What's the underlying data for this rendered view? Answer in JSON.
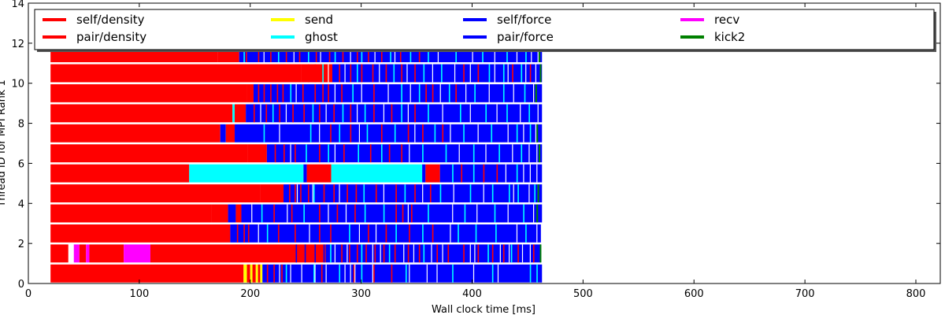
{
  "chart_data": {
    "type": "bar",
    "orientation": "horizontal-timeline",
    "xlabel": "Wall clock time [ms]",
    "ylabel": "Thread ID for MPI Rank 1",
    "xlim": [
      0,
      822
    ],
    "ylim": [
      0,
      14
    ],
    "xticks": [
      0,
      100,
      200,
      300,
      400,
      500,
      600,
      700,
      800
    ],
    "yticks": [
      0,
      2,
      4,
      6,
      8,
      10,
      12,
      14
    ],
    "grid": false,
    "legend_position": "top",
    "legend": [
      {
        "name": "self/density",
        "color": "#ff0000"
      },
      {
        "name": "pair/density",
        "color": "#ff0000"
      },
      {
        "name": "send",
        "color": "#ffff00"
      },
      {
        "name": "ghost",
        "color": "#00ffff"
      },
      {
        "name": "self/force",
        "color": "#0000ff"
      },
      {
        "name": "pair/force",
        "color": "#0000ff"
      },
      {
        "name": "recv",
        "color": "#ff00ff"
      },
      {
        "name": "kick2",
        "color": "#008000"
      }
    ],
    "threads": [
      {
        "thread": 0,
        "segments": [
          {
            "task": "self/density",
            "start": 20,
            "end": 194
          },
          {
            "task": "send",
            "start": 194,
            "end": 197
          },
          {
            "task": "pair/density",
            "start": 197,
            "end": 200
          },
          {
            "task": "send",
            "start": 200,
            "end": 202
          },
          {
            "task": "pair/density",
            "start": 202,
            "end": 205
          },
          {
            "task": "send",
            "start": 205,
            "end": 207
          },
          {
            "task": "pair/density",
            "start": 207,
            "end": 209
          },
          {
            "task": "send",
            "start": 209,
            "end": 211
          },
          {
            "task": "pair/force",
            "start": 211,
            "end": 463
          }
        ]
      },
      {
        "thread": 1,
        "segments": [
          {
            "task": "pair/density",
            "start": 20,
            "end": 36
          },
          {
            "task": "recv",
            "start": 41,
            "end": 46
          },
          {
            "task": "pair/density",
            "start": 46,
            "end": 52
          },
          {
            "task": "recv",
            "start": 52,
            "end": 55
          },
          {
            "task": "pair/density",
            "start": 55,
            "end": 86
          },
          {
            "task": "recv",
            "start": 86,
            "end": 110
          },
          {
            "task": "pair/density",
            "start": 110,
            "end": 268
          },
          {
            "task": "pair/force",
            "start": 268,
            "end": 462
          }
        ]
      },
      {
        "thread": 2,
        "segments": [
          {
            "task": "self/density",
            "start": 20,
            "end": 182
          },
          {
            "task": "pair/force",
            "start": 182,
            "end": 462
          }
        ]
      },
      {
        "thread": 3,
        "segments": [
          {
            "task": "self/density",
            "start": 20,
            "end": 165
          },
          {
            "task": "pair/density",
            "start": 165,
            "end": 180
          },
          {
            "task": "pair/force",
            "start": 180,
            "end": 187
          },
          {
            "task": "pair/density",
            "start": 187,
            "end": 192
          },
          {
            "task": "pair/force",
            "start": 192,
            "end": 463
          }
        ]
      },
      {
        "thread": 4,
        "segments": [
          {
            "task": "self/density",
            "start": 20,
            "end": 209
          },
          {
            "task": "pair/density",
            "start": 209,
            "end": 230
          },
          {
            "task": "pair/force",
            "start": 230,
            "end": 463
          }
        ]
      },
      {
        "thread": 5,
        "segments": [
          {
            "task": "self/density",
            "start": 20,
            "end": 145
          },
          {
            "task": "ghost",
            "start": 145,
            "end": 248
          },
          {
            "task": "pair/force",
            "start": 248,
            "end": 251
          },
          {
            "task": "pair/density",
            "start": 251,
            "end": 273
          },
          {
            "task": "ghost",
            "start": 273,
            "end": 355
          },
          {
            "task": "pair/force",
            "start": 355,
            "end": 358
          },
          {
            "task": "pair/density",
            "start": 358,
            "end": 371
          },
          {
            "task": "pair/force",
            "start": 371,
            "end": 463
          }
        ]
      },
      {
        "thread": 6,
        "segments": [
          {
            "task": "self/density",
            "start": 20,
            "end": 198
          },
          {
            "task": "pair/density",
            "start": 198,
            "end": 215
          },
          {
            "task": "pair/force",
            "start": 215,
            "end": 463
          }
        ]
      },
      {
        "thread": 7,
        "segments": [
          {
            "task": "self/density",
            "start": 20,
            "end": 173
          },
          {
            "task": "pair/force",
            "start": 173,
            "end": 178
          },
          {
            "task": "pair/density",
            "start": 178,
            "end": 186
          },
          {
            "task": "pair/force",
            "start": 186,
            "end": 463
          }
        ]
      },
      {
        "thread": 8,
        "segments": [
          {
            "task": "self/density",
            "start": 20,
            "end": 184
          },
          {
            "task": "ghost",
            "start": 184,
            "end": 186
          },
          {
            "task": "pair/density",
            "start": 186,
            "end": 196
          },
          {
            "task": "pair/force",
            "start": 196,
            "end": 463
          }
        ]
      },
      {
        "thread": 9,
        "segments": [
          {
            "task": "self/density",
            "start": 20,
            "end": 197
          },
          {
            "task": "pair/density",
            "start": 197,
            "end": 203
          },
          {
            "task": "pair/force",
            "start": 203,
            "end": 463
          }
        ]
      },
      {
        "thread": 10,
        "segments": [
          {
            "task": "self/density",
            "start": 20,
            "end": 246
          },
          {
            "task": "pair/density",
            "start": 246,
            "end": 274
          },
          {
            "task": "pair/force",
            "start": 274,
            "end": 463
          }
        ]
      },
      {
        "thread": 11,
        "segments": [
          {
            "task": "self/density",
            "start": 20,
            "end": 171
          },
          {
            "task": "pair/density",
            "start": 171,
            "end": 190
          },
          {
            "task": "pair/force",
            "start": 190,
            "end": 463
          }
        ]
      }
    ],
    "slivers": [
      {
        "thread": 0,
        "task": "pair/density",
        "times": [
          215,
          221,
          228,
          264,
          293,
          311,
          327
        ]
      },
      {
        "thread": 0,
        "task": "ghost",
        "times": [
          232,
          257,
          280,
          300,
          340,
          382,
          418,
          452,
          458
        ]
      },
      {
        "thread": 0,
        "task": "gap",
        "times": [
          226,
          236,
          246,
          258,
          268,
          285,
          290,
          294,
          310,
          343,
          359,
          368,
          401,
          423
        ]
      },
      {
        "thread": 1,
        "task": "pair/force",
        "times": [
          241,
          249,
          258,
          266
        ]
      },
      {
        "thread": 1,
        "task": "pair/density",
        "times": [
          282,
          289,
          296,
          304,
          312,
          320,
          330,
          342,
          352,
          368,
          378,
          392,
          405,
          418,
          428,
          441,
          455
        ]
      },
      {
        "thread": 1,
        "task": "ghost",
        "times": [
          272,
          300,
          325,
          356,
          414,
          435
        ]
      },
      {
        "thread": 1,
        "task": "gap",
        "times": [
          276,
          287,
          310,
          317,
          338,
          347,
          363,
          373,
          398,
          402,
          425,
          433,
          445,
          452
        ]
      },
      {
        "thread": 2,
        "task": "pair/density",
        "times": [
          188,
          194,
          198,
          225,
          240,
          262,
          272,
          306,
          322,
          343,
          364
        ]
      },
      {
        "thread": 2,
        "task": "ghost",
        "times": [
          215,
          289,
          331,
          355,
          387,
          403,
          421,
          448
        ]
      },
      {
        "thread": 2,
        "task": "gap",
        "times": [
          207,
          253,
          298,
          313,
          380,
          440,
          458
        ]
      },
      {
        "thread": 3,
        "task": "pair/density",
        "times": [
          221,
          237,
          262,
          278,
          294,
          331,
          337,
          345
        ]
      },
      {
        "thread": 3,
        "task": "ghost",
        "times": [
          210,
          248,
          303,
          320,
          360,
          393,
          420,
          446
        ]
      },
      {
        "thread": 3,
        "task": "gap",
        "times": [
          201,
          233,
          270,
          286,
          342,
          382,
          404,
          432,
          455
        ]
      },
      {
        "thread": 4,
        "task": "pair/density",
        "times": [
          235,
          240,
          245,
          252,
          266,
          275,
          287,
          295,
          313,
          331,
          348,
          362
        ]
      },
      {
        "thread": 4,
        "task": "ghost",
        "times": [
          257,
          302,
          339,
          371,
          398,
          418,
          433,
          441,
          456,
          459
        ]
      },
      {
        "thread": 4,
        "task": "gap",
        "times": [
          242,
          256,
          280,
          320,
          355,
          383,
          410,
          437,
          451
        ]
      },
      {
        "thread": 5,
        "task": "pair/density",
        "times": [
          390,
          410,
          422
        ]
      },
      {
        "thread": 5,
        "task": "ghost",
        "times": [
          382,
          401,
          440
        ]
      },
      {
        "thread": 5,
        "task": "gap",
        "times": [
          430,
          446,
          452,
          458
        ]
      },
      {
        "thread": 6,
        "task": "pair/density",
        "times": [
          222,
          230,
          240,
          262,
          284,
          308,
          325,
          336
        ]
      },
      {
        "thread": 6,
        "task": "ghost",
        "times": [
          250,
          270,
          297,
          318,
          355,
          376,
          401,
          424,
          444
        ]
      },
      {
        "thread": 6,
        "task": "gap",
        "times": [
          236,
          276,
          343,
          388,
          412,
          436,
          451,
          458
        ]
      },
      {
        "thread": 7,
        "task": "pair/density",
        "times": [
          272,
          290,
          318,
          342,
          355,
          373
        ]
      },
      {
        "thread": 7,
        "task": "ghost",
        "times": [
          212,
          254,
          280,
          305,
          330,
          366,
          392,
          417,
          440,
          452
        ]
      },
      {
        "thread": 7,
        "task": "gap",
        "times": [
          226,
          262,
          298,
          348,
          380,
          405,
          432,
          446,
          457
        ]
      },
      {
        "thread": 8,
        "task": "pair/density",
        "times": [
          203,
          214,
          226,
          238,
          248,
          262,
          275,
          290,
          311,
          327,
          348
        ]
      },
      {
        "thread": 8,
        "task": "ghost",
        "times": [
          220,
          256,
          283,
          303,
          336,
          360,
          389,
          412,
          431,
          451
        ]
      },
      {
        "thread": 8,
        "task": "gap",
        "times": [
          209,
          232,
          268,
          296,
          320,
          342,
          373,
          398,
          422,
          443,
          459
        ]
      },
      {
        "thread": 9,
        "task": "pair/density",
        "times": [
          207,
          212,
          218,
          224,
          229,
          247,
          258,
          265,
          270,
          282,
          311,
          358,
          364,
          385
        ]
      },
      {
        "thread": 9,
        "task": "ghost",
        "times": [
          236,
          292,
          336,
          352,
          379,
          402,
          428,
          447
        ]
      },
      {
        "thread": 9,
        "task": "gap",
        "times": [
          241,
          276,
          300,
          324,
          344,
          371,
          394,
          415,
          437,
          455
        ]
      },
      {
        "thread": 10,
        "task": "pair/density",
        "times": [
          252,
          258,
          280,
          290,
          300,
          310,
          322,
          336,
          348,
          392,
          405,
          436,
          452
        ]
      },
      {
        "thread": 10,
        "task": "ghost",
        "times": [
          265,
          296,
          329,
          356,
          372,
          415,
          428,
          444
        ]
      },
      {
        "thread": 10,
        "task": "gap",
        "times": [
          270,
          285,
          316,
          341,
          364,
          384,
          398,
          420,
          432,
          448,
          457
        ]
      },
      {
        "thread": 11,
        "task": "pair/density",
        "times": [
          196,
          207,
          218,
          232,
          244,
          259,
          271,
          283,
          296,
          306,
          318,
          335,
          352
        ]
      },
      {
        "thread": 11,
        "task": "ghost",
        "times": [
          194,
          225,
          252,
          276,
          300,
          326,
          344,
          360,
          385,
          409,
          431,
          448
        ]
      },
      {
        "thread": 11,
        "task": "gap",
        "times": [
          212,
          239,
          263,
          290,
          312,
          330,
          369,
          400,
          420,
          440,
          453,
          459
        ]
      }
    ],
    "kick2": [
      {
        "thread": 1,
        "time": 461
      },
      {
        "thread": 3,
        "time": 458
      },
      {
        "thread": 4,
        "time": 459
      },
      {
        "thread": 6,
        "time": 460
      },
      {
        "thread": 7,
        "time": 458
      },
      {
        "thread": 9,
        "time": 457
      },
      {
        "thread": 10,
        "time": 461
      },
      {
        "thread": 11,
        "time": 460
      }
    ]
  }
}
